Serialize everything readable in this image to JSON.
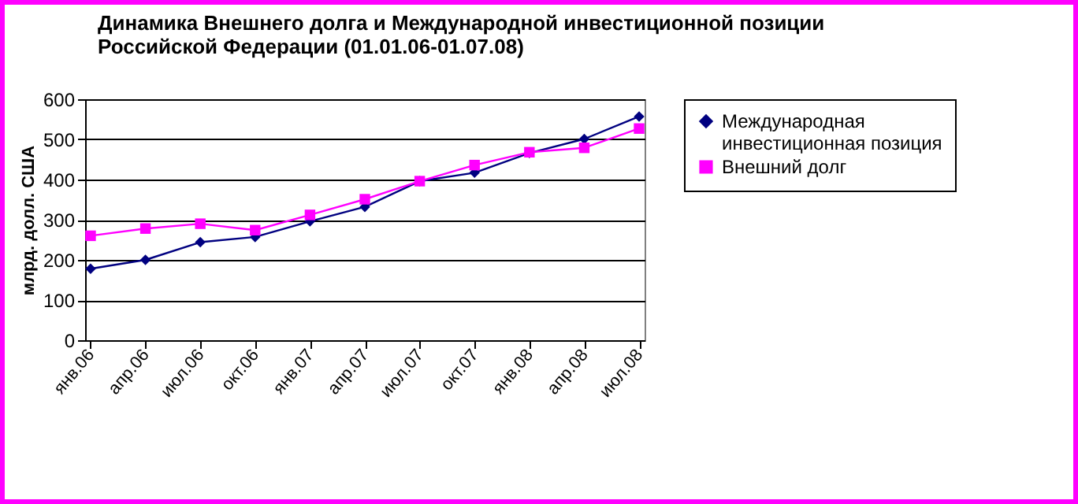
{
  "chart_data": {
    "type": "line",
    "title": [
      "Динамика Внешнего долга и Международной инвестиционной позиции",
      "Российской Федерации (01.01.06-01.07.08)"
    ],
    "ylabel": "млрд. долл. США",
    "categories": [
      "янв.06",
      "апр.06",
      "июл.06",
      "окт.06",
      "янв.07",
      "апр.07",
      "июл.07",
      "окт.07",
      "янв.08",
      "апр.08",
      "июл.08"
    ],
    "series": [
      {
        "name": "Международная инвестиционная позиция",
        "color": "#000080",
        "marker": "diamond",
        "values": [
          178,
          200,
          244,
          257,
          296,
          332,
          396,
          417,
          466,
          501,
          557
        ]
      },
      {
        "name": "Внешний долг",
        "color": "#ff00ff",
        "marker": "square",
        "values": [
          260,
          278,
          290,
          274,
          312,
          351,
          396,
          436,
          468,
          479,
          527
        ]
      }
    ],
    "ylim": [
      0,
      600
    ],
    "yticks": [
      0,
      100,
      200,
      300,
      400,
      500,
      600
    ],
    "grid": "y",
    "legend": "right"
  }
}
